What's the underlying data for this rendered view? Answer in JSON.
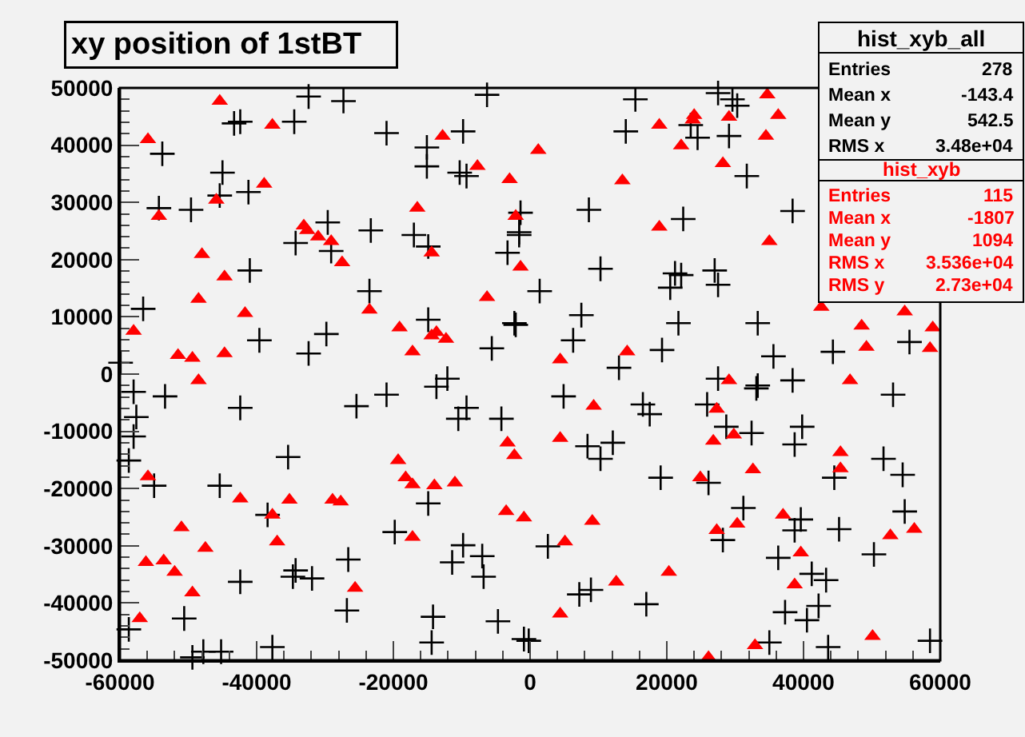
{
  "chart_data": {
    "type": "scatter",
    "title": "xy position of 1stBT",
    "xlim": [
      -60000,
      60000
    ],
    "xticks": [
      -60000,
      -40000,
      -20000,
      0,
      20000,
      40000,
      60000
    ],
    "ylim": [
      -50000,
      50000
    ],
    "yticks": [
      -50000,
      -40000,
      -30000,
      -20000,
      -10000,
      0,
      10000,
      20000,
      30000,
      40000,
      50000
    ],
    "grid": false,
    "annotations": [
      "hist_xyb_all",
      "Entries",
      "278",
      "Mean x",
      "-143.4",
      "Mean y",
      "542.5",
      "RMS x",
      "3.48e+04",
      "hist_xyb",
      "Entries",
      "115",
      "Mean x",
      "-1807",
      "Mean y",
      "1094",
      "RMS x",
      "3.536e+04",
      "RMS y",
      "2.73e+04"
    ],
    "series": [
      {
        "color": "#000000",
        "marker": "cross",
        "x": [
          -32400,
          -27300,
          -6300,
          -43300,
          -42400,
          -34500,
          -21000,
          -9800,
          -15100,
          -15100,
          -10300,
          -9300,
          -53800,
          -45000,
          -41200,
          -45400,
          -54300,
          -49600,
          -29600,
          -34300,
          -29100,
          -23300,
          -17000,
          -14900,
          -3300,
          -1600,
          -1400,
          -41000,
          -56600,
          -23500,
          -14900,
          -2300,
          -5600,
          -29800,
          -39600,
          -32400,
          -59900,
          -12100,
          15400,
          27500,
          29600,
          30300,
          14000,
          23500,
          24500,
          29100,
          31700,
          8600,
          22400,
          38400,
          -1600,
          10300,
          21200,
          22100,
          20500,
          27000,
          27500,
          1400,
          7500,
          6300,
          -2100,
          21700,
          33300,
          19300,
          13000,
          35600,
          44300,
          55500,
          27500,
          38400,
          33300,
          -58000,
          -53400,
          -57600,
          -58000,
          -58700,
          -55000,
          -42400,
          -35400,
          -45400,
          -38400,
          -34300,
          -34700,
          -31900,
          -42400,
          -26600,
          -26800,
          -50600,
          -58700,
          -49400,
          -47800,
          -45200,
          -37700,
          -25400,
          -21000,
          -13700,
          -10500,
          -9300,
          -4200,
          -14900,
          -19800,
          -9800,
          -11400,
          -7000,
          -6800,
          -14200,
          -14400,
          -4700,
          -900,
          4900,
          16500,
          17500,
          25900,
          33100,
          53100,
          28700,
          32400,
          39800,
          38700,
          8400,
          12100,
          10300,
          19100,
          26100,
          44500,
          51700,
          54500,
          31200,
          28200,
          39600,
          38700,
          45200,
          54800,
          50300,
          2600,
          36300,
          41200,
          43300,
          7200,
          8900,
          17000,
          37300,
          42200,
          40500,
          -200,
          35000,
          43600,
          58500
        ],
        "values": [
          48500,
          47700,
          48800,
          43800,
          44100,
          44100,
          42100,
          42400,
          39600,
          36300,
          35200,
          34600,
          38500,
          35200,
          31800,
          31200,
          29000,
          28700,
          26500,
          22900,
          21500,
          25100,
          24300,
          22300,
          21200,
          24300,
          28200,
          18100,
          11400,
          14500,
          9500,
          8900,
          4500,
          7000,
          5900,
          3600,
          2000,
          -800,
          48000,
          49100,
          48000,
          46900,
          42400,
          43500,
          41300,
          41600,
          34600,
          28700,
          27100,
          28500,
          24800,
          18400,
          17600,
          17300,
          15100,
          18100,
          15600,
          14500,
          10300,
          5900,
          8600,
          8900,
          8900,
          4200,
          1100,
          3100,
          3900,
          5600,
          -800,
          -1100,
          -2000,
          -3100,
          -3900,
          -7500,
          -10900,
          -15100,
          -19500,
          -5900,
          -14500,
          -19500,
          -24600,
          -34300,
          -35400,
          -35700,
          -36300,
          -32400,
          -41300,
          -42700,
          -44600,
          -49500,
          -48500,
          -48500,
          -47700,
          -5600,
          -3600,
          -2200,
          -7800,
          -5900,
          -7800,
          -22600,
          -27600,
          -29900,
          -32900,
          -31800,
          -35400,
          -42400,
          -46900,
          -43200,
          -46300,
          -3900,
          -5300,
          -7000,
          -5300,
          -2500,
          -3600,
          -9200,
          -10300,
          -9200,
          -12300,
          -12600,
          -12000,
          -14800,
          -18100,
          -19000,
          -18100,
          -14800,
          -17600,
          -23400,
          -29000,
          -25400,
          -27300,
          -27100,
          -24000,
          -31500,
          -30100,
          -32100,
          -34900,
          -36000,
          -38500,
          -37700,
          -40200,
          -41600,
          -40500,
          -43000,
          -46600,
          -46900,
          -47700,
          -46600
        ]
      },
      {
        "color": "#ff0000",
        "marker": "triangle",
        "x": [
          -45400,
          -55900,
          -37700,
          -38900,
          -45900,
          -54300,
          -48000,
          -44700,
          -48500,
          -41700,
          -58000,
          -51500,
          -49400,
          -44700,
          -48500,
          -33100,
          -32600,
          -31000,
          -29100,
          -27500,
          -23500,
          -19100,
          -17200,
          -14400,
          -13700,
          -12300,
          -16500,
          -14400,
          -12800,
          -7700,
          -6300,
          -3000,
          -2100,
          -1400,
          34700,
          36300,
          24000,
          23800,
          29100,
          18900,
          34500,
          22100,
          28200,
          13500,
          1200,
          18900,
          35000,
          4400,
          14200,
          29100,
          46800,
          48500,
          49200,
          54800,
          58500,
          58900,
          42600,
          -55900,
          -42400,
          -37700,
          -35200,
          -37000,
          -51000,
          -47500,
          -56200,
          -53600,
          -52000,
          -49400,
          -57100,
          -28900,
          -27700,
          -25600,
          -19300,
          -18200,
          -17200,
          -14000,
          -11000,
          -17200,
          -3300,
          -2300,
          -3500,
          -900,
          9300,
          27300,
          4400,
          26800,
          29800,
          45400,
          45400,
          32600,
          24900,
          9100,
          5100,
          27300,
          30300,
          37000,
          39600,
          52700,
          56200,
          20300,
          12600,
          38700,
          4400,
          32900,
          50100,
          26100
        ],
        "values": [
          47700,
          41000,
          43500,
          33200,
          30400,
          27600,
          20900,
          17000,
          13100,
          10600,
          7500,
          3300,
          2800,
          3600,
          -1100,
          25900,
          25100,
          24000,
          23200,
          19500,
          11200,
          8100,
          3900,
          6700,
          7300,
          6100,
          29000,
          21200,
          41600,
          36300,
          13400,
          34000,
          27600,
          18700,
          48800,
          45200,
          45200,
          44400,
          44900,
          43500,
          41600,
          39900,
          36800,
          33800,
          39100,
          25700,
          23200,
          2500,
          3900,
          -1100,
          -1100,
          8400,
          4700,
          10900,
          4500,
          8100,
          11700,
          -17900,
          -21800,
          -24600,
          -22000,
          -29300,
          -26800,
          -30400,
          -32900,
          -32600,
          -34600,
          -38200,
          -42700,
          -22000,
          -22300,
          -37400,
          -15100,
          -18100,
          -19300,
          -19500,
          -19000,
          -28500,
          -12000,
          -14200,
          -24000,
          -25100,
          -5600,
          -6100,
          -11200,
          -11700,
          -10600,
          -13700,
          -16500,
          -16700,
          -18100,
          -25700,
          -29300,
          -27300,
          -26200,
          -24600,
          -31200,
          -28200,
          -27100,
          -34600,
          -36300,
          -36800,
          -41900,
          -47400,
          -45800,
          -49500
        ]
      }
    ]
  }
}
